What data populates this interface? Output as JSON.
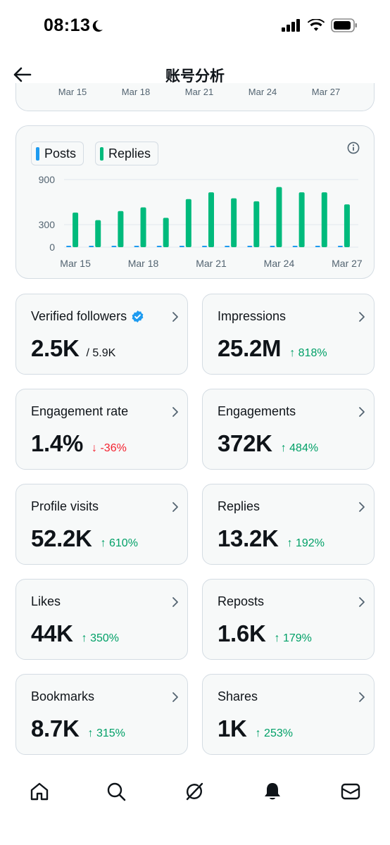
{
  "status_bar": {
    "time": "08:13"
  },
  "header": {
    "title": "账号分析"
  },
  "partial_chart": {
    "ticks": [
      "Mar 15",
      "Mar 18",
      "Mar 21",
      "Mar 24",
      "Mar 27"
    ]
  },
  "chart_data": {
    "type": "bar",
    "categories": [
      "Mar 15",
      "Mar 16",
      "Mar 17",
      "Mar 18",
      "Mar 19",
      "Mar 20",
      "Mar 21",
      "Mar 22",
      "Mar 23",
      "Mar 24",
      "Mar 25",
      "Mar 26",
      "Mar 27"
    ],
    "x_tick_labels": [
      "Mar 15",
      "Mar 18",
      "Mar 21",
      "Mar 24",
      "Mar 27"
    ],
    "y_tick_labels": [
      "900",
      "300",
      "0"
    ],
    "ylim": [
      0,
      1050
    ],
    "grid": true,
    "legend_position": "top-left",
    "series": [
      {
        "name": "Posts",
        "color": "#1d9bf0",
        "values": [
          8,
          8,
          8,
          8,
          8,
          8,
          8,
          8,
          8,
          8,
          8,
          8,
          8
        ]
      },
      {
        "name": "Replies",
        "color": "#00ba7c",
        "values": [
          460,
          360,
          480,
          530,
          390,
          640,
          730,
          650,
          610,
          800,
          730,
          730,
          570
        ]
      }
    ]
  },
  "stats": [
    {
      "label": "Verified followers",
      "value": "2.5K",
      "sub": "/ 5.9K",
      "verified": true
    },
    {
      "label": "Impressions",
      "value": "25.2M",
      "delta": "↑ 818%",
      "direction": "up"
    },
    {
      "label": "Engagement rate",
      "value": "1.4%",
      "delta": "↓ -36%",
      "direction": "down"
    },
    {
      "label": "Engagements",
      "value": "372K",
      "delta": "↑ 484%",
      "direction": "up"
    },
    {
      "label": "Profile visits",
      "value": "52.2K",
      "delta": "↑ 610%",
      "direction": "up"
    },
    {
      "label": "Replies",
      "value": "13.2K",
      "delta": "↑ 192%",
      "direction": "up"
    },
    {
      "label": "Likes",
      "value": "44K",
      "delta": "↑ 350%",
      "direction": "up"
    },
    {
      "label": "Reposts",
      "value": "1.6K",
      "delta": "↑ 179%",
      "direction": "up"
    },
    {
      "label": "Bookmarks",
      "value": "8.7K",
      "delta": "↑ 315%",
      "direction": "up"
    },
    {
      "label": "Shares",
      "value": "1K",
      "delta": "↑ 253%",
      "direction": "up"
    }
  ],
  "bottom_nav": [
    "home-icon",
    "search-icon",
    "grok-icon",
    "notifications-icon",
    "messages-icon"
  ]
}
